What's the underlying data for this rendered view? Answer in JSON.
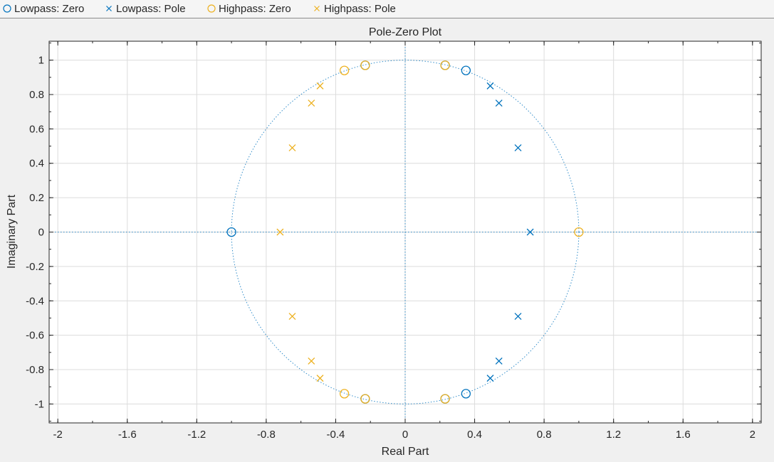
{
  "legend": {
    "items": [
      {
        "label": "Lowpass: Zero",
        "marker": "circle",
        "color": "#0072BD"
      },
      {
        "label": "Lowpass: Pole",
        "marker": "cross",
        "color": "#0072BD"
      },
      {
        "label": "Highpass: Zero",
        "marker": "circle",
        "color": "#EDB120"
      },
      {
        "label": "Highpass: Pole",
        "marker": "cross",
        "color": "#EDB120"
      }
    ]
  },
  "chart_data": {
    "type": "scatter",
    "title": "Pole-Zero Plot",
    "xlabel": "Real Part",
    "ylabel": "Imaginary Part",
    "xlim": [
      -2.05,
      2.05
    ],
    "ylim": [
      -1.11,
      1.11
    ],
    "xticks": [
      -2,
      -1.6,
      -1.2,
      -0.8,
      -0.4,
      0,
      0.4,
      0.8,
      1.2,
      1.6,
      2
    ],
    "xtick_labels": [
      "-2",
      "-1.6",
      "-1.2",
      "-0.8",
      "-0.4",
      "0",
      "0.4",
      "0.8",
      "1.2",
      "1.6",
      "2"
    ],
    "yticks": [
      -1,
      -0.8,
      -0.6,
      -0.4,
      -0.2,
      0,
      0.2,
      0.4,
      0.6,
      0.8,
      1
    ],
    "ytick_labels": [
      "-1",
      "-0.8",
      "-0.6",
      "-0.4",
      "-0.2",
      "0",
      "0.2",
      "0.4",
      "0.6",
      "0.8",
      "1"
    ],
    "grid": true,
    "unit_circle": true,
    "legend_placement": "top",
    "colors": {
      "lowpass": "#0072BD",
      "highpass": "#EDB120",
      "guide": "#0072BD"
    },
    "series": [
      {
        "name": "Lowpass: Zero",
        "marker": "circle",
        "color": "#0072BD",
        "points": [
          [
            -1.0,
            0.0
          ],
          [
            0.35,
            0.94
          ],
          [
            0.35,
            -0.94
          ],
          [
            0.23,
            0.97
          ],
          [
            0.23,
            -0.97
          ],
          [
            -0.23,
            0.97
          ],
          [
            -0.23,
            -0.97
          ]
        ]
      },
      {
        "name": "Lowpass: Pole",
        "marker": "cross",
        "color": "#0072BD",
        "points": [
          [
            0.72,
            0.0
          ],
          [
            0.65,
            0.49
          ],
          [
            0.65,
            -0.49
          ],
          [
            0.54,
            0.75
          ],
          [
            0.54,
            -0.75
          ],
          [
            0.49,
            0.85
          ],
          [
            0.49,
            -0.85
          ]
        ]
      },
      {
        "name": "Highpass: Zero",
        "marker": "circle",
        "color": "#EDB120",
        "points": [
          [
            1.0,
            0.0
          ],
          [
            -0.35,
            0.94
          ],
          [
            -0.35,
            -0.94
          ],
          [
            -0.23,
            0.97
          ],
          [
            -0.23,
            -0.97
          ],
          [
            0.23,
            0.97
          ],
          [
            0.23,
            -0.97
          ]
        ]
      },
      {
        "name": "Highpass: Pole",
        "marker": "cross",
        "color": "#EDB120",
        "points": [
          [
            -0.72,
            0.0
          ],
          [
            -0.65,
            0.49
          ],
          [
            -0.65,
            -0.49
          ],
          [
            -0.54,
            0.75
          ],
          [
            -0.54,
            -0.75
          ],
          [
            -0.49,
            0.85
          ],
          [
            -0.49,
            -0.85
          ]
        ]
      }
    ]
  }
}
